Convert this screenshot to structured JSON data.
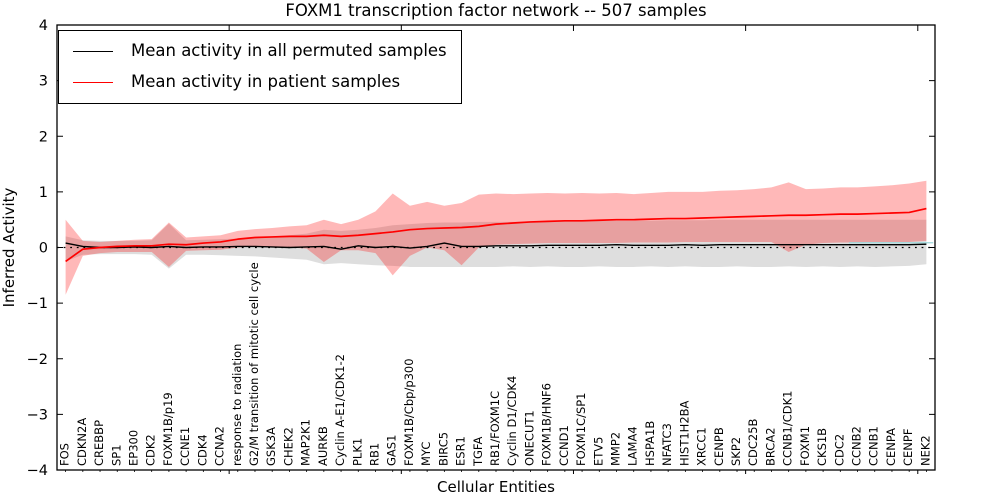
{
  "title": "FOXM1 transcription factor network -- 507 samples",
  "axes": {
    "xlabel": "Cellular Entities",
    "ylabel": "Inferred Activity",
    "ytick_labels": [
      "−4",
      "−3",
      "−2",
      "−1",
      "0",
      "1",
      "2",
      "3",
      "4"
    ]
  },
  "colors": {
    "patient_line": "#ff0000",
    "permuted_line": "#000000",
    "patient_band": "rgba(255,0,0,0.28)",
    "permuted_band": "rgba(0,0,0,0.13)",
    "zero_dotted_line": "#000000",
    "cyan_line": "#9fd8dc",
    "spine": "#000000"
  },
  "chart_data": {
    "type": "area",
    "title": "FOXM1 transcription factor network -- 507 samples",
    "xlabel": "Cellular Entities",
    "ylabel": "Inferred Activity",
    "ylim": [
      -4,
      4
    ],
    "yticks": [
      -4,
      -3,
      -2,
      -1,
      0,
      1,
      2,
      3,
      4
    ],
    "x_major_ticks": [
      10,
      20,
      30,
      40,
      50
    ],
    "grid": false,
    "legend_position": "upper left",
    "categories": [
      "FOS",
      "CDKN2A",
      "CREBBP",
      "SP1",
      "EP300",
      "CDK2",
      "FOXM1B/p19",
      "CCNE1",
      "CDK4",
      "CCNA2",
      "response to radiation",
      "G2/M transition of mitotic cell cycle",
      "GSK3A",
      "CHEK2",
      "MAP2K1",
      "AURKB",
      "Cyclin A-E1/CDK1-2",
      "PLK1",
      "RB1",
      "GAS1",
      "FOXM1B/Cbp/p300",
      "MYC",
      "BIRC5",
      "ESR1",
      "TGFA",
      "RB1/FOXM1C",
      "Cyclin D1/CDK4",
      "ONECUT1",
      "FOXM1B/HNF6",
      "CCND1",
      "FOXM1C/SP1",
      "ETV5",
      "MMP2",
      "LAMA4",
      "HSPA1B",
      "NFATC3",
      "HIST1H2BA",
      "XRCC1",
      "CENPB",
      "SKP2",
      "CDC25B",
      "BRCA2",
      "CCNB1/CDK1",
      "FOXM1",
      "CKS1B",
      "CDC2",
      "CCNB2",
      "CCNB1",
      "CENPA",
      "CENPF",
      "NEK2"
    ],
    "series": [
      {
        "name": "Mean activity in all permuted samples",
        "type": "line",
        "color": "#000000",
        "values": [
          0.08,
          0.02,
          0.0,
          0.0,
          0.01,
          0.0,
          0.02,
          0.0,
          0.01,
          0.01,
          0.02,
          0.02,
          0.01,
          0.0,
          0.01,
          0.02,
          -0.03,
          0.03,
          0.0,
          0.02,
          -0.01,
          0.02,
          0.08,
          0.02,
          0.02,
          0.03,
          0.03,
          0.03,
          0.04,
          0.04,
          0.04,
          0.04,
          0.05,
          0.04,
          0.04,
          0.04,
          0.05,
          0.04,
          0.05,
          0.05,
          0.05,
          0.05,
          0.05,
          0.05,
          0.05,
          0.05,
          0.05,
          0.05,
          0.05,
          0.05,
          0.06
        ]
      },
      {
        "name": "Mean activity in patient samples",
        "type": "line",
        "color": "#ff0000",
        "values": [
          -0.25,
          -0.03,
          0.0,
          0.02,
          0.03,
          0.03,
          0.06,
          0.05,
          0.08,
          0.1,
          0.15,
          0.18,
          0.19,
          0.2,
          0.2,
          0.22,
          0.2,
          0.22,
          0.25,
          0.28,
          0.32,
          0.34,
          0.35,
          0.36,
          0.38,
          0.42,
          0.44,
          0.46,
          0.47,
          0.48,
          0.48,
          0.49,
          0.5,
          0.5,
          0.51,
          0.52,
          0.52,
          0.53,
          0.54,
          0.55,
          0.56,
          0.57,
          0.58,
          0.58,
          0.59,
          0.6,
          0.6,
          0.61,
          0.62,
          0.63,
          0.7
        ]
      }
    ],
    "bands": [
      {
        "name": "permuted samples range",
        "color": "rgba(0,0,0,0.13)",
        "low": [
          -0.25,
          -0.13,
          -0.12,
          -0.12,
          -0.12,
          -0.13,
          -0.38,
          -0.13,
          -0.13,
          -0.14,
          -0.15,
          -0.16,
          -0.18,
          -0.2,
          -0.22,
          -0.3,
          -0.28,
          -0.3,
          -0.32,
          -0.33,
          -0.35,
          -0.35,
          -0.35,
          -0.35,
          -0.35,
          -0.35,
          -0.34,
          -0.35,
          -0.34,
          -0.35,
          -0.35,
          -0.34,
          -0.35,
          -0.35,
          -0.34,
          -0.35,
          -0.34,
          -0.35,
          -0.35,
          -0.34,
          -0.35,
          -0.35,
          -0.34,
          -0.35,
          -0.34,
          -0.35,
          -0.34,
          -0.35,
          -0.34,
          -0.33,
          -0.3
        ],
        "high": [
          0.2,
          0.13,
          0.12,
          0.12,
          0.12,
          0.13,
          0.43,
          0.13,
          0.14,
          0.15,
          0.16,
          0.18,
          0.2,
          0.22,
          0.25,
          0.32,
          0.3,
          0.32,
          0.35,
          0.4,
          0.42,
          0.44,
          0.45,
          0.45,
          0.46,
          0.46,
          0.46,
          0.47,
          0.47,
          0.47,
          0.48,
          0.48,
          0.48,
          0.48,
          0.48,
          0.49,
          0.49,
          0.49,
          0.5,
          0.5,
          0.5,
          0.5,
          0.5,
          0.5,
          0.5,
          0.5,
          0.5,
          0.5,
          0.5,
          0.5,
          0.5
        ]
      },
      {
        "name": "patient samples range",
        "color": "rgba(255,0,0,0.28)",
        "low": [
          -0.85,
          -0.15,
          -0.1,
          -0.08,
          -0.08,
          -0.08,
          -0.35,
          -0.06,
          -0.05,
          -0.04,
          0.0,
          0.02,
          0.0,
          0.0,
          -0.02,
          -0.26,
          -0.05,
          -0.05,
          -0.1,
          -0.5,
          -0.15,
          0.0,
          -0.05,
          -0.32,
          0.0,
          0.05,
          0.06,
          0.07,
          0.08,
          0.08,
          0.08,
          0.08,
          0.08,
          0.09,
          0.09,
          0.09,
          0.1,
          0.1,
          0.1,
          0.1,
          0.1,
          0.1,
          -0.08,
          0.05,
          0.08,
          0.09,
          0.09,
          0.1,
          0.1,
          0.1,
          0.12
        ],
        "high": [
          0.5,
          0.12,
          0.1,
          0.12,
          0.14,
          0.15,
          0.45,
          0.18,
          0.2,
          0.22,
          0.3,
          0.33,
          0.35,
          0.38,
          0.4,
          0.5,
          0.42,
          0.5,
          0.65,
          0.97,
          0.75,
          0.82,
          0.75,
          0.8,
          0.95,
          0.97,
          0.96,
          0.97,
          0.98,
          0.97,
          0.98,
          0.97,
          0.98,
          0.96,
          0.98,
          1.0,
          1.0,
          1.0,
          1.02,
          1.03,
          1.05,
          1.08,
          1.17,
          1.05,
          1.06,
          1.08,
          1.08,
          1.1,
          1.12,
          1.15,
          1.2
        ]
      }
    ],
    "zero_line": {
      "y": 0,
      "style": "dotted",
      "color": "#000000"
    },
    "cyan_segment": {
      "y": 0.085,
      "from_index": 46,
      "to_index": 50.9,
      "color": "#9fd8dc"
    }
  }
}
